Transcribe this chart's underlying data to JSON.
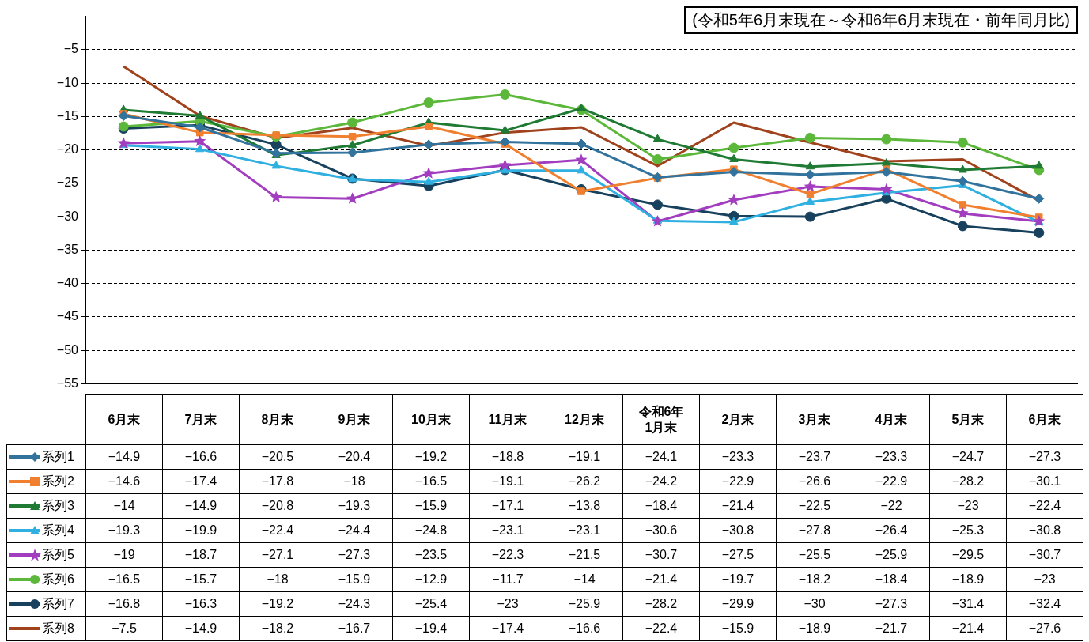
{
  "chart_data": {
    "type": "line",
    "subtitle": "(令和5年6月末現在～令和6年6月末現在・前年同月比)",
    "categories": [
      "6月末",
      "7月末",
      "8月末",
      "9月末",
      "10月末",
      "11月末",
      "12月末",
      "令和6年\n1月末",
      "2月末",
      "3月末",
      "4月末",
      "5月末",
      "6月末"
    ],
    "series": [
      {
        "name": "系列1",
        "color": "#31739c",
        "marker": "diamond",
        "values": [
          -14.9,
          -16.6,
          -20.5,
          -20.4,
          -19.2,
          -18.8,
          -19.1,
          -24.1,
          -23.3,
          -23.7,
          -23.3,
          -24.7,
          -27.3
        ]
      },
      {
        "name": "系列2",
        "color": "#f07f2f",
        "marker": "square",
        "values": [
          -14.6,
          -17.4,
          -17.8,
          -18,
          -16.5,
          -19.1,
          -26.2,
          -24.2,
          -22.9,
          -26.6,
          -22.9,
          -28.2,
          -30.1
        ]
      },
      {
        "name": "系列3",
        "color": "#1f7a33",
        "marker": "triangle",
        "values": [
          -14,
          -14.9,
          -20.8,
          -19.3,
          -15.9,
          -17.1,
          -13.8,
          -18.4,
          -21.4,
          -22.5,
          -22,
          -23,
          -22.4
        ]
      },
      {
        "name": "系列4",
        "color": "#2fb0e0",
        "marker": "triangle",
        "values": [
          -19.3,
          -19.9,
          -22.4,
          -24.4,
          -24.8,
          -23.1,
          -23.1,
          -30.6,
          -30.8,
          -27.8,
          -26.4,
          -25.3,
          -30.8
        ]
      },
      {
        "name": "系列5",
        "color": "#a23dbf",
        "marker": "star",
        "values": [
          -19,
          -18.7,
          -27.1,
          -27.3,
          -23.5,
          -22.3,
          -21.5,
          -30.7,
          -27.5,
          -25.5,
          -25.9,
          -29.5,
          -30.7
        ]
      },
      {
        "name": "系列6",
        "color": "#5cb83a",
        "marker": "circle",
        "values": [
          -16.5,
          -15.7,
          -18,
          -15.9,
          -12.9,
          -11.7,
          -14,
          -21.4,
          -19.7,
          -18.2,
          -18.4,
          -18.9,
          -23
        ]
      },
      {
        "name": "系列7",
        "color": "#17415c",
        "marker": "circle",
        "values": [
          -16.8,
          -16.3,
          -19.2,
          -24.3,
          -25.4,
          -23,
          -25.9,
          -28.2,
          -29.9,
          -30,
          -27.3,
          -31.4,
          -32.4
        ]
      },
      {
        "name": "系列8",
        "color": "#a0421c",
        "marker": "none",
        "values": [
          -7.5,
          -14.9,
          -18.2,
          -16.7,
          -19.4,
          -17.4,
          -16.6,
          -22.4,
          -15.9,
          -18.9,
          -21.7,
          -21.4,
          -27.6
        ]
      }
    ],
    "ylim": [
      -55,
      0
    ],
    "yticks": [
      -55,
      -50,
      -45,
      -40,
      -35,
      -30,
      -25,
      -20,
      -15,
      -10,
      -5
    ],
    "grid": "y",
    "legend": "bottom",
    "data_labels": true,
    "line_style": "solid"
  }
}
